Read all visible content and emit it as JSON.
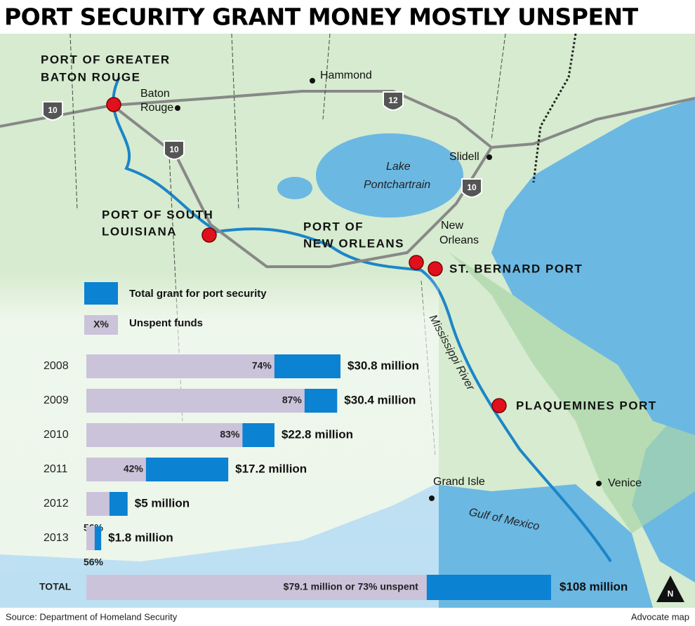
{
  "title": "PORT SECURITY GRANT MONEY MOSTLY UNSPENT",
  "map": {
    "labels": [
      "PORT OF GREATER",
      "BATON ROUGE",
      "Baton",
      "Rouge",
      "Hammond",
      "Slidell",
      "Lake",
      "Pontchartrain",
      "PORT OF SOUTH",
      "LOUISIANA",
      "PORT OF",
      "NEW ORLEANS",
      "New",
      "Orleans",
      "ST. BERNARD PORT",
      "Mississippi River",
      "PLAQUEMINES PORT",
      "Grand Isle",
      "Venice",
      "Gulf of Mexico"
    ],
    "highways": [
      "10",
      "12",
      "10",
      "10"
    ],
    "north": "N"
  },
  "legend": {
    "sample": "X%"
  },
  "chart_data": {
    "type": "bar",
    "categories": [
      "2008",
      "2009",
      "2010",
      "2011",
      "2012",
      "2013"
    ],
    "series": [
      {
        "name": "Total grant for port security",
        "color": "#0b82d2",
        "values": [
          30.8,
          30.4,
          22.8,
          17.2,
          5,
          1.8
        ],
        "value_labels": [
          "$30.8 million",
          "$30.4 million",
          "$22.8 million",
          "$17.2 million",
          "$5 million",
          "$1.8 million"
        ]
      },
      {
        "name": "Unspent funds",
        "color": "#cbc3da",
        "values": [
          74,
          87,
          83,
          42,
          56,
          56
        ],
        "value_labels": [
          "74%",
          "87%",
          "83%",
          "42%",
          "56%",
          "56%"
        ]
      }
    ],
    "total": {
      "label": "TOTAL",
      "value": 108,
      "value_label": "$108 million",
      "unspent_value": 79.1,
      "unspent_percent": 73,
      "unspent_label": "$79.1 million or 73% unspent"
    }
  },
  "source": "Source: Department of Homeland Security",
  "credit": "Advocate map"
}
